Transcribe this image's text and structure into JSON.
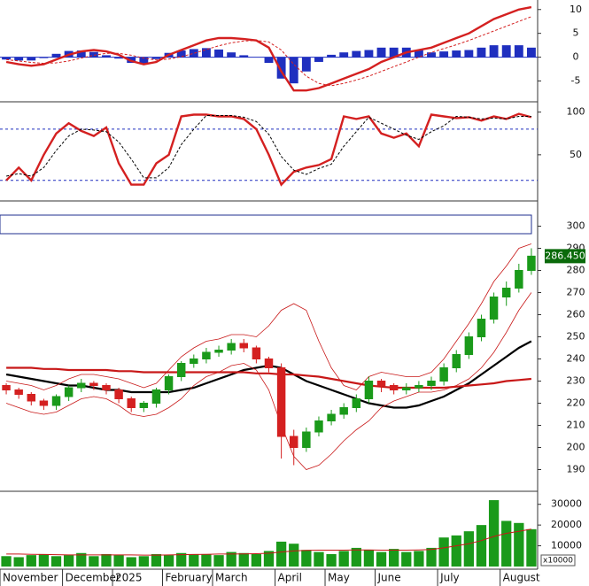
{
  "chart_data": [
    {
      "type": "macd",
      "ylim": [
        -9,
        12
      ],
      "yticks": [
        10,
        5,
        0,
        -5
      ],
      "zero_line": 0,
      "histogram": {
        "color": "#1f2fbf",
        "values": [
          -0.5,
          -0.7,
          -0.7,
          -0.2,
          0.7,
          1.3,
          1.4,
          1.1,
          0.4,
          -0.3,
          -1.2,
          -1.3,
          -0.4,
          0.9,
          1.4,
          1.7,
          1.9,
          1.6,
          1,
          0.4,
          0,
          -1.2,
          -4.5,
          -5.5,
          -3,
          -1,
          0.5,
          1,
          1.3,
          1.5,
          2,
          2,
          2,
          1.5,
          1,
          1.2,
          1.4,
          1.5,
          2,
          2.5,
          2.5,
          2.5,
          2
        ]
      },
      "series": [
        {
          "color": "#d42020",
          "style": "solid",
          "values": [
            -1,
            -1.5,
            -1.8,
            -1.5,
            -0.5,
            0.5,
            1.2,
            1.5,
            1.2,
            0.5,
            -0.8,
            -1.5,
            -1,
            0.5,
            1.5,
            2.5,
            3.5,
            4,
            4,
            3.8,
            3.5,
            2,
            -3,
            -7,
            -7,
            -6.5,
            -5.5,
            -4.5,
            -3.5,
            -2.5,
            -1,
            0,
            1,
            1.5,
            2,
            3,
            4,
            5,
            6.5,
            8,
            9,
            10,
            10.5
          ]
        },
        {
          "color": "#d42020",
          "style": "dashed",
          "values": [
            -0.5,
            -0.8,
            -1.1,
            -1.3,
            -1.2,
            -0.8,
            -0.2,
            0.4,
            0.8,
            0.8,
            0.4,
            -0.2,
            -0.6,
            -0.4,
            0.1,
            0.8,
            1.6,
            2.4,
            3,
            3.4,
            3.5,
            3.2,
            1.5,
            -1.5,
            -4,
            -5.5,
            -6,
            -5.5,
            -4.8,
            -4,
            -3,
            -2,
            -1,
            0,
            1,
            1.8,
            2.6,
            3.5,
            4.5,
            5.5,
            6.5,
            7.5,
            8.5
          ]
        }
      ]
    },
    {
      "type": "stochastic",
      "ylim": [
        -2,
        110
      ],
      "yticks": [
        100,
        50
      ],
      "levels": [
        80,
        20
      ],
      "level_color": "#1f2fbf",
      "series": [
        {
          "color": "#d42020",
          "style": "solid",
          "values": [
            20,
            35,
            20,
            50,
            75,
            87,
            78,
            72,
            82,
            40,
            15,
            15,
            40,
            50,
            95,
            97,
            97,
            95,
            95,
            92,
            80,
            50,
            15,
            30,
            35,
            38,
            45,
            95,
            92,
            95,
            75,
            70,
            75,
            60,
            97,
            95,
            93,
            94,
            90,
            95,
            92,
            98,
            94
          ]
        },
        {
          "color": "#000000",
          "style": "dashed",
          "values": [
            25,
            28,
            25,
            35,
            55,
            72,
            80,
            79,
            77,
            65,
            45,
            23,
            23,
            35,
            62,
            80,
            96,
            96,
            96,
            94,
            89,
            74,
            48,
            32,
            27,
            34,
            39,
            60,
            77,
            94,
            87,
            80,
            73,
            68,
            77,
            84,
            95,
            94,
            92,
            93,
            92,
            95,
            95
          ]
        }
      ]
    },
    {
      "type": "candlestick",
      "ylim": [
        181,
        311
      ],
      "yticks": [
        190,
        200,
        210,
        220,
        230,
        240,
        250,
        260,
        270,
        280,
        290,
        300
      ],
      "up_color": "#1a9a1a",
      "down_color": "#d42020",
      "open": [
        228,
        226,
        224,
        221,
        219,
        223,
        227,
        229,
        228,
        226,
        222,
        218,
        220,
        226,
        232,
        238,
        240,
        243,
        244,
        247,
        245,
        240,
        236,
        205,
        200,
        207,
        212,
        215,
        218,
        222,
        230,
        228,
        226,
        227,
        228,
        230,
        236,
        242,
        250,
        258,
        268,
        272,
        280
      ],
      "high": [
        229,
        227,
        225,
        222,
        224,
        228,
        231,
        230,
        229,
        227,
        223,
        221,
        227,
        233,
        239,
        242,
        245,
        246,
        249,
        249,
        246,
        241,
        238,
        208,
        209,
        214,
        217,
        220,
        224,
        232,
        231,
        229,
        229,
        230,
        232,
        238,
        244,
        252,
        260,
        270,
        275,
        283,
        290
      ],
      "low": [
        224,
        222,
        219,
        217,
        217,
        221,
        225,
        226,
        224,
        220,
        216,
        216,
        218,
        224,
        230,
        236,
        238,
        241,
        242,
        243,
        238,
        234,
        195,
        192,
        198,
        205,
        210,
        213,
        216,
        220,
        225,
        224,
        224,
        225,
        226,
        228,
        234,
        240,
        248,
        256,
        264,
        270,
        278
      ],
      "close": [
        226,
        224,
        221,
        219,
        223,
        227,
        229,
        228,
        226,
        222,
        218,
        220,
        226,
        232,
        238,
        240,
        243,
        244,
        247,
        245,
        240,
        236,
        205,
        200,
        207,
        212,
        215,
        218,
        222,
        230,
        228,
        226,
        227,
        228,
        230,
        236,
        242,
        250,
        258,
        268,
        272,
        280,
        286.45
      ],
      "last_value_label": "286.450",
      "series": [
        {
          "color": "#000000",
          "width": 2.2,
          "values": [
            233,
            232,
            231,
            230,
            229,
            228,
            228,
            227,
            226,
            226,
            225,
            225,
            225,
            225,
            226,
            227,
            229,
            231,
            233,
            235,
            236,
            237,
            236,
            233,
            230,
            228,
            226,
            224,
            222,
            220,
            219,
            218,
            218,
            219,
            221,
            223,
            226,
            229,
            233,
            237,
            241,
            245,
            248
          ]
        },
        {
          "color": "#c81818",
          "width": 2.2,
          "values": [
            236,
            236,
            236,
            235.5,
            235.5,
            235,
            235,
            235,
            235,
            234.5,
            234.5,
            234,
            234,
            234,
            234,
            234,
            234,
            234,
            234,
            234,
            233.5,
            233.5,
            233,
            233,
            232.5,
            232,
            231,
            230,
            229,
            228,
            227.5,
            227,
            227,
            227,
            227,
            227,
            227.5,
            228,
            228.5,
            229,
            230,
            230.5,
            231
          ]
        },
        {
          "color": "#c81818",
          "width": 0.8,
          "values": [
            230,
            229,
            228,
            226,
            228,
            231,
            233,
            233,
            232,
            231,
            229,
            227,
            229,
            235,
            241,
            245,
            248,
            249,
            251,
            251,
            250,
            255,
            262,
            265,
            262,
            248,
            236,
            228,
            226,
            232,
            234,
            233,
            232,
            232,
            234,
            240,
            248,
            256,
            265,
            275,
            282,
            290,
            292
          ]
        },
        {
          "color": "#c81818",
          "width": 0.8,
          "values": [
            220,
            218,
            216,
            215,
            216,
            219,
            222,
            223,
            222,
            219,
            215,
            214,
            215,
            218,
            222,
            228,
            232,
            234,
            237,
            238,
            235,
            226,
            210,
            196,
            190,
            192,
            197,
            203,
            208,
            212,
            218,
            221,
            223,
            225,
            225,
            226,
            228,
            231,
            236,
            243,
            252,
            262,
            270
          ]
        }
      ]
    },
    {
      "type": "bar",
      "ylim": [
        0,
        35000
      ],
      "yticks": [
        10000,
        20000,
        30000
      ],
      "unit_label": "x10000",
      "categories": [
        "November",
        null,
        null,
        null,
        null,
        "December",
        null,
        null,
        null,
        "2025",
        null,
        null,
        null,
        "February",
        null,
        null,
        null,
        "March",
        null,
        null,
        null,
        null,
        "April",
        null,
        null,
        null,
        "May",
        null,
        null,
        null,
        "June",
        null,
        null,
        null,
        null,
        "July",
        null,
        null,
        null,
        null,
        "August",
        null,
        null
      ],
      "color": "#1a9a1a",
      "values": [
        5000,
        4500,
        5500,
        6000,
        5000,
        5500,
        6500,
        5000,
        6000,
        5500,
        4500,
        5000,
        6000,
        5500,
        6500,
        6000,
        6000,
        5500,
        7000,
        6500,
        6000,
        7500,
        12000,
        11000,
        8000,
        7000,
        6000,
        7500,
        9000,
        8000,
        7000,
        8500,
        7000,
        7500,
        9000,
        14000,
        15000,
        17000,
        20000,
        32000,
        22000,
        21000,
        18000
      ],
      "series": [
        {
          "color": "#c81818",
          "width": 1,
          "values": [
            6000,
            6000,
            5900,
            5800,
            5700,
            5600,
            5600,
            5600,
            5600,
            5600,
            5600,
            5500,
            5500,
            5600,
            5700,
            5800,
            5900,
            6000,
            6000,
            6100,
            6200,
            6400,
            7000,
            7500,
            7800,
            7900,
            7900,
            7900,
            8000,
            8000,
            7900,
            7900,
            7900,
            8000,
            8200,
            9000,
            10000,
            11000,
            12500,
            14500,
            16000,
            17000,
            18000
          ]
        }
      ]
    }
  ]
}
